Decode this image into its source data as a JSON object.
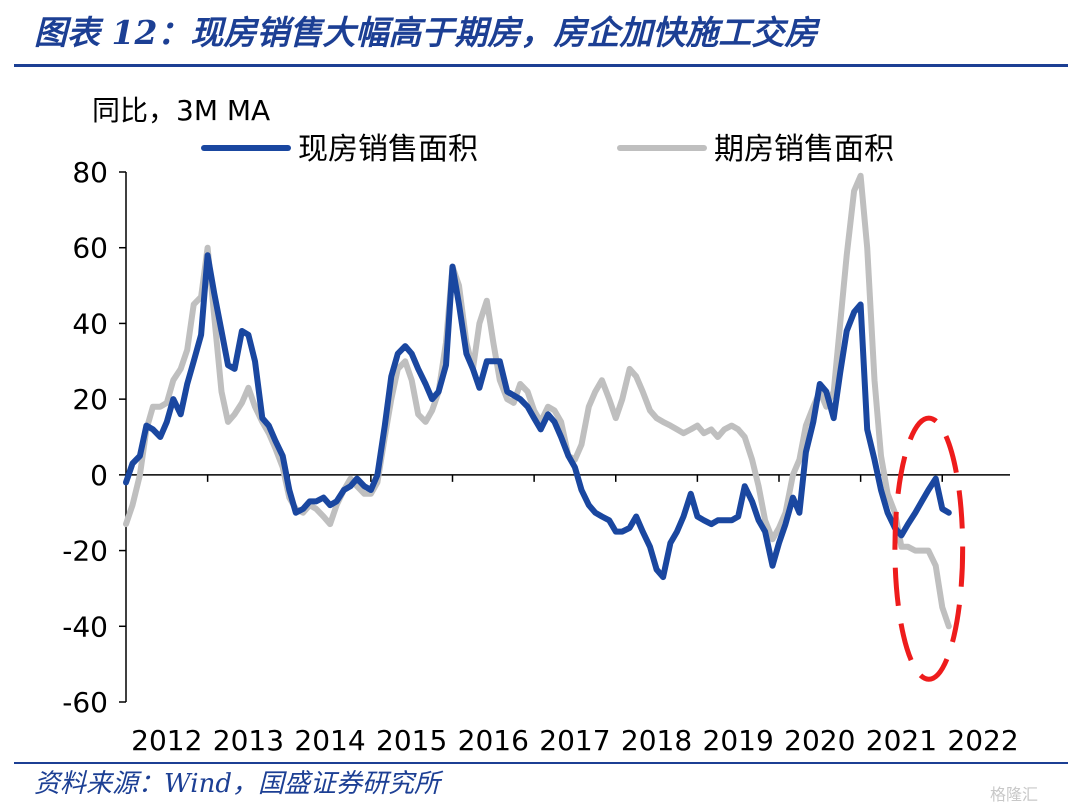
{
  "title": "图表 12：现房销售大幅高于期房，房企加快施工交房",
  "source": "资料来源：Wind，国盛证券研究所",
  "watermark": "格隆汇",
  "chart_data": {
    "type": "line",
    "ylabel": "同比，3M MA",
    "ylim": [
      -60,
      80
    ],
    "yticks": [
      80,
      60,
      40,
      20,
      0,
      -20,
      -40,
      -60
    ],
    "xlim": [
      2012.0,
      2022.83
    ],
    "xticks": [
      2012,
      2013,
      2014,
      2015,
      2016,
      2017,
      2018,
      2019,
      2020,
      2021,
      2022
    ],
    "xtick_labels": [
      "2012",
      "2013",
      "2014",
      "2015",
      "2016",
      "2017",
      "2018",
      "2019",
      "2020",
      "2021",
      "2022"
    ],
    "legend_position": "top",
    "series": [
      {
        "name": "现房销售面积",
        "color": "#1a47a0",
        "points": [
          [
            2012.0,
            -2
          ],
          [
            2012.08,
            3
          ],
          [
            2012.17,
            5
          ],
          [
            2012.25,
            13
          ],
          [
            2012.33,
            12
          ],
          [
            2012.42,
            10
          ],
          [
            2012.5,
            14
          ],
          [
            2012.58,
            20
          ],
          [
            2012.67,
            16
          ],
          [
            2012.75,
            24
          ],
          [
            2012.83,
            30
          ],
          [
            2012.92,
            37
          ],
          [
            2013.0,
            58
          ],
          [
            2013.08,
            48
          ],
          [
            2013.17,
            38
          ],
          [
            2013.25,
            29
          ],
          [
            2013.33,
            28
          ],
          [
            2013.42,
            38
          ],
          [
            2013.5,
            37
          ],
          [
            2013.58,
            30
          ],
          [
            2013.67,
            15
          ],
          [
            2013.75,
            13
          ],
          [
            2013.83,
            9
          ],
          [
            2013.92,
            5
          ],
          [
            2014.0,
            -4
          ],
          [
            2014.08,
            -10
          ],
          [
            2014.17,
            -9
          ],
          [
            2014.25,
            -7
          ],
          [
            2014.33,
            -7
          ],
          [
            2014.42,
            -6
          ],
          [
            2014.5,
            -8
          ],
          [
            2014.58,
            -7
          ],
          [
            2014.67,
            -4
          ],
          [
            2014.75,
            -3
          ],
          [
            2014.83,
            -1
          ],
          [
            2014.92,
            -3
          ],
          [
            2015.0,
            -4
          ],
          [
            2015.08,
            0
          ],
          [
            2015.17,
            13
          ],
          [
            2015.25,
            26
          ],
          [
            2015.33,
            32
          ],
          [
            2015.42,
            34
          ],
          [
            2015.5,
            32
          ],
          [
            2015.58,
            28
          ],
          [
            2015.67,
            24
          ],
          [
            2015.75,
            20
          ],
          [
            2015.83,
            22
          ],
          [
            2015.92,
            29
          ],
          [
            2016.0,
            55
          ],
          [
            2016.08,
            45
          ],
          [
            2016.17,
            32
          ],
          [
            2016.25,
            28
          ],
          [
            2016.33,
            23
          ],
          [
            2016.42,
            30
          ],
          [
            2016.5,
            30
          ],
          [
            2016.58,
            30
          ],
          [
            2016.67,
            22
          ],
          [
            2016.75,
            21
          ],
          [
            2016.83,
            20
          ],
          [
            2016.92,
            18
          ],
          [
            2017.0,
            15
          ],
          [
            2017.08,
            12
          ],
          [
            2017.17,
            16
          ],
          [
            2017.25,
            14
          ],
          [
            2017.33,
            10
          ],
          [
            2017.42,
            5
          ],
          [
            2017.5,
            2
          ],
          [
            2017.58,
            -4
          ],
          [
            2017.67,
            -8
          ],
          [
            2017.75,
            -10
          ],
          [
            2017.83,
            -11
          ],
          [
            2017.92,
            -12
          ],
          [
            2018.0,
            -15
          ],
          [
            2018.08,
            -15
          ],
          [
            2018.17,
            -14
          ],
          [
            2018.25,
            -11
          ],
          [
            2018.33,
            -15
          ],
          [
            2018.42,
            -19
          ],
          [
            2018.5,
            -25
          ],
          [
            2018.58,
            -27
          ],
          [
            2018.67,
            -18
          ],
          [
            2018.75,
            -15
          ],
          [
            2018.83,
            -11
          ],
          [
            2018.92,
            -5
          ],
          [
            2019.0,
            -11
          ],
          [
            2019.08,
            -12
          ],
          [
            2019.17,
            -13
          ],
          [
            2019.25,
            -12
          ],
          [
            2019.33,
            -12
          ],
          [
            2019.42,
            -12
          ],
          [
            2019.5,
            -11
          ],
          [
            2019.58,
            -3
          ],
          [
            2019.67,
            -7
          ],
          [
            2019.75,
            -12
          ],
          [
            2019.83,
            -15
          ],
          [
            2019.92,
            -24
          ],
          [
            2020.0,
            -18
          ],
          [
            2020.08,
            -13
          ],
          [
            2020.17,
            -6
          ],
          [
            2020.25,
            -10
          ],
          [
            2020.33,
            6
          ],
          [
            2020.42,
            14
          ],
          [
            2020.5,
            24
          ],
          [
            2020.58,
            22
          ],
          [
            2020.67,
            15
          ],
          [
            2020.75,
            27
          ],
          [
            2020.83,
            38
          ],
          [
            2020.92,
            43
          ],
          [
            2021.0,
            45
          ],
          [
            2021.08,
            12
          ],
          [
            2021.17,
            4
          ],
          [
            2021.25,
            -4
          ],
          [
            2021.33,
            -10
          ],
          [
            2021.42,
            -14
          ],
          [
            2021.5,
            -16
          ],
          [
            2021.58,
            -13
          ],
          [
            2021.67,
            -10
          ],
          [
            2021.75,
            -7
          ],
          [
            2021.83,
            -4
          ],
          [
            2021.92,
            -1
          ],
          [
            2022.0,
            -9
          ],
          [
            2022.08,
            -10
          ]
        ]
      },
      {
        "name": "期房销售面积",
        "color": "#bfbfbf",
        "points": [
          [
            2012.0,
            -13
          ],
          [
            2012.08,
            -8
          ],
          [
            2012.17,
            0
          ],
          [
            2012.25,
            12
          ],
          [
            2012.33,
            18
          ],
          [
            2012.42,
            18
          ],
          [
            2012.5,
            19
          ],
          [
            2012.58,
            25
          ],
          [
            2012.67,
            28
          ],
          [
            2012.75,
            33
          ],
          [
            2012.83,
            45
          ],
          [
            2012.92,
            47
          ],
          [
            2013.0,
            60
          ],
          [
            2013.08,
            42
          ],
          [
            2013.17,
            22
          ],
          [
            2013.25,
            14
          ],
          [
            2013.33,
            16
          ],
          [
            2013.42,
            19
          ],
          [
            2013.5,
            23
          ],
          [
            2013.58,
            18
          ],
          [
            2013.67,
            14
          ],
          [
            2013.75,
            11
          ],
          [
            2013.83,
            7
          ],
          [
            2013.92,
            2
          ],
          [
            2014.0,
            -6
          ],
          [
            2014.08,
            -9
          ],
          [
            2014.17,
            -10
          ],
          [
            2014.25,
            -8
          ],
          [
            2014.33,
            -9
          ],
          [
            2014.42,
            -11
          ],
          [
            2014.5,
            -13
          ],
          [
            2014.58,
            -8
          ],
          [
            2014.67,
            -4
          ],
          [
            2014.75,
            -1
          ],
          [
            2014.83,
            -3
          ],
          [
            2014.92,
            -5
          ],
          [
            2015.0,
            -5
          ],
          [
            2015.08,
            -2
          ],
          [
            2015.17,
            10
          ],
          [
            2015.25,
            20
          ],
          [
            2015.33,
            28
          ],
          [
            2015.42,
            30
          ],
          [
            2015.5,
            25
          ],
          [
            2015.58,
            16
          ],
          [
            2015.67,
            14
          ],
          [
            2015.75,
            17
          ],
          [
            2015.83,
            22
          ],
          [
            2015.92,
            35
          ],
          [
            2016.0,
            55
          ],
          [
            2016.08,
            50
          ],
          [
            2016.17,
            35
          ],
          [
            2016.25,
            28
          ],
          [
            2016.33,
            40
          ],
          [
            2016.42,
            46
          ],
          [
            2016.5,
            35
          ],
          [
            2016.58,
            25
          ],
          [
            2016.67,
            20
          ],
          [
            2016.75,
            19
          ],
          [
            2016.83,
            24
          ],
          [
            2016.92,
            22
          ],
          [
            2017.0,
            17
          ],
          [
            2017.08,
            14
          ],
          [
            2017.17,
            18
          ],
          [
            2017.25,
            17
          ],
          [
            2017.33,
            14
          ],
          [
            2017.42,
            5
          ],
          [
            2017.5,
            4
          ],
          [
            2017.58,
            8
          ],
          [
            2017.67,
            18
          ],
          [
            2017.75,
            22
          ],
          [
            2017.83,
            25
          ],
          [
            2017.92,
            20
          ],
          [
            2018.0,
            15
          ],
          [
            2018.08,
            20
          ],
          [
            2018.17,
            28
          ],
          [
            2018.25,
            26
          ],
          [
            2018.33,
            22
          ],
          [
            2018.42,
            17
          ],
          [
            2018.5,
            15
          ],
          [
            2018.58,
            14
          ],
          [
            2018.67,
            13
          ],
          [
            2018.75,
            12
          ],
          [
            2018.83,
            11
          ],
          [
            2018.92,
            12
          ],
          [
            2019.0,
            13
          ],
          [
            2019.08,
            11
          ],
          [
            2019.17,
            12
          ],
          [
            2019.25,
            10
          ],
          [
            2019.33,
            12
          ],
          [
            2019.42,
            13
          ],
          [
            2019.5,
            12
          ],
          [
            2019.58,
            10
          ],
          [
            2019.67,
            4
          ],
          [
            2019.75,
            -3
          ],
          [
            2019.83,
            -12
          ],
          [
            2019.92,
            -17
          ],
          [
            2020.0,
            -14
          ],
          [
            2020.08,
            -10
          ],
          [
            2020.17,
            0
          ],
          [
            2020.25,
            4
          ],
          [
            2020.33,
            13
          ],
          [
            2020.42,
            18
          ],
          [
            2020.5,
            22
          ],
          [
            2020.58,
            18
          ],
          [
            2020.67,
            22
          ],
          [
            2020.75,
            40
          ],
          [
            2020.83,
            58
          ],
          [
            2020.92,
            75
          ],
          [
            2021.0,
            79
          ],
          [
            2021.08,
            60
          ],
          [
            2021.17,
            25
          ],
          [
            2021.25,
            5
          ],
          [
            2021.33,
            -5
          ],
          [
            2021.42,
            -10
          ],
          [
            2021.5,
            -19
          ],
          [
            2021.58,
            -19
          ],
          [
            2021.67,
            -20
          ],
          [
            2021.75,
            -20
          ],
          [
            2021.83,
            -20
          ],
          [
            2021.92,
            -24
          ],
          [
            2022.0,
            -35
          ],
          [
            2022.08,
            -40
          ]
        ]
      }
    ],
    "annotations": [
      {
        "type": "dashed-ellipse",
        "color": "#ee1c1c",
        "x_range": [
          2021.42,
          2022.25
        ],
        "y_range": [
          -54,
          15
        ]
      }
    ]
  }
}
